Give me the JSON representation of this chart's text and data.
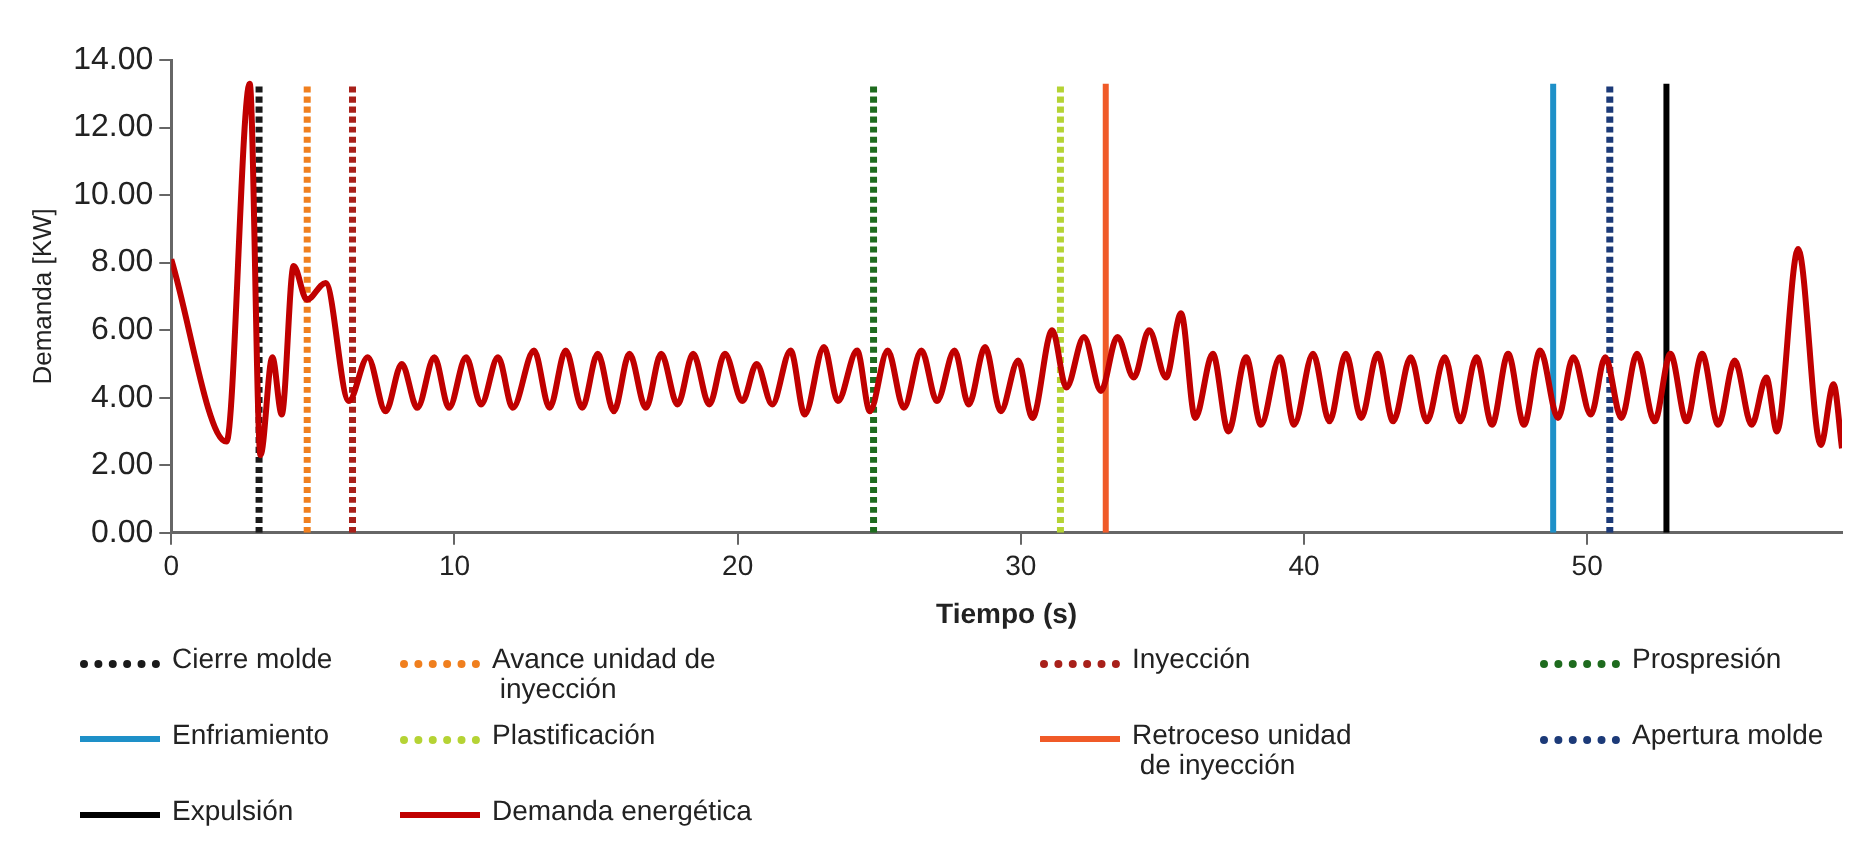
{
  "chart_data": {
    "type": "line",
    "xlabel": "Tiempo (s)",
    "ylabel": "Demanda [KW]",
    "xlim": [
      0,
      59
    ],
    "xticks": [
      0,
      10,
      20,
      30,
      40,
      50
    ],
    "ylim": [
      0,
      14
    ],
    "yticks": [
      {
        "value": 0,
        "label": "0.00"
      },
      {
        "value": 2,
        "label": "2.00"
      },
      {
        "value": 4,
        "label": "4.00"
      },
      {
        "value": 6,
        "label": "6.00"
      },
      {
        "value": 8,
        "label": "8.00"
      },
      {
        "value": 10,
        "label": "10.00"
      },
      {
        "value": 12,
        "label": "12.00"
      },
      {
        "value": 14,
        "label": "14.00"
      }
    ],
    "grid": false,
    "legend": "bottom",
    "series": [
      {
        "name": "Cierre molde",
        "color": "#1a1a1a",
        "type": "line",
        "line_style": "dotted",
        "x": [
          3.1,
          3.1
        ],
        "values": [
          0,
          13.3
        ]
      },
      {
        "name": "Avance unidad de\n inyección",
        "color": "#f07f1e",
        "type": "line",
        "line_style": "dotted",
        "x": [
          4.8,
          4.8
        ],
        "values": [
          0,
          13.3
        ]
      },
      {
        "name": "Inyección",
        "color": "#a8201a",
        "type": "line",
        "line_style": "dotted",
        "x": [
          6.4,
          6.4
        ],
        "values": [
          0,
          13.3
        ]
      },
      {
        "name": "Prospresión",
        "color": "#1e6b1e",
        "type": "line",
        "line_style": "dotted",
        "x": [
          24.8,
          24.8
        ],
        "values": [
          0,
          13.3
        ]
      },
      {
        "name": "Enfriamiento",
        "color": "#1e90c8",
        "type": "line",
        "line_style": "solid",
        "x": [
          48.8,
          48.8
        ],
        "values": [
          0,
          13.3
        ]
      },
      {
        "name": "Plastificación",
        "color": "#b5d334",
        "type": "line",
        "line_style": "dotted",
        "x": [
          31.4,
          31.4
        ],
        "values": [
          0,
          13.3
        ]
      },
      {
        "name": "Retroceso unidad\n de inyección",
        "color": "#f05a28",
        "type": "line",
        "line_style": "solid",
        "x": [
          33.0,
          33.0
        ],
        "values": [
          0,
          13.3
        ]
      },
      {
        "name": "Apertura molde",
        "color": "#1c3a78",
        "type": "line",
        "line_style": "dotted",
        "x": [
          50.8,
          50.8
        ],
        "values": [
          0,
          13.3
        ]
      },
      {
        "name": "Expulsión",
        "color": "#000000",
        "type": "line",
        "line_style": "solid",
        "x": [
          52.8,
          52.8
        ],
        "values": [
          0,
          13.3
        ]
      },
      {
        "name": "Demanda energética",
        "color": "#c00000",
        "type": "line",
        "line_style": "solid",
        "x": [
          0,
          1.95,
          2.77,
          3.15,
          3.57,
          3.9,
          4.32,
          4.79,
          5.45,
          6.27,
          6.94,
          7.57,
          8.14,
          8.69,
          9.29,
          9.81,
          10.41,
          10.94,
          11.54,
          12.06,
          12.81,
          13.36,
          13.93,
          14.51,
          15.06,
          15.63,
          16.18,
          16.76,
          17.3,
          17.88,
          18.43,
          19.0,
          19.55,
          20.17,
          20.67,
          21.22,
          21.87,
          22.37,
          23.05,
          23.54,
          24.22,
          24.67,
          25.3,
          25.87,
          26.49,
          27.04,
          27.66,
          28.16,
          28.74,
          29.29,
          29.91,
          30.41,
          31.11,
          31.61,
          32.23,
          32.83,
          33.41,
          33.99,
          34.53,
          35.13,
          35.66,
          36.16,
          36.78,
          37.33,
          37.96,
          38.48,
          39.15,
          39.65,
          40.32,
          40.9,
          41.48,
          42.02,
          42.6,
          43.15,
          43.77,
          44.34,
          44.97,
          45.52,
          46.09,
          46.64,
          47.21,
          47.77,
          48.34,
          48.97,
          49.51,
          50.13,
          50.64,
          51.21,
          51.76,
          52.38,
          52.94,
          53.51,
          54.06,
          54.63,
          55.21,
          55.81,
          56.33,
          56.7,
          57.45,
          58.25,
          58.7,
          59.0
        ],
        "values": [
          8.1,
          2.7,
          13.3,
          2.3,
          5.2,
          3.5,
          7.9,
          6.9,
          7.4,
          3.9,
          5.2,
          3.6,
          5.0,
          3.7,
          5.2,
          3.7,
          5.2,
          3.8,
          5.2,
          3.7,
          5.4,
          3.7,
          5.4,
          3.7,
          5.3,
          3.6,
          5.3,
          3.7,
          5.3,
          3.8,
          5.3,
          3.8,
          5.3,
          3.9,
          5.0,
          3.8,
          5.4,
          3.5,
          5.5,
          3.9,
          5.4,
          3.6,
          5.4,
          3.7,
          5.4,
          3.9,
          5.4,
          3.8,
          5.5,
          3.6,
          5.1,
          3.4,
          6.0,
          4.3,
          5.8,
          4.2,
          5.8,
          4.6,
          6.0,
          4.6,
          6.5,
          3.4,
          5.3,
          3.0,
          5.2,
          3.2,
          5.2,
          3.2,
          5.3,
          3.3,
          5.3,
          3.4,
          5.3,
          3.3,
          5.2,
          3.3,
          5.2,
          3.3,
          5.2,
          3.2,
          5.3,
          3.2,
          5.4,
          3.4,
          5.2,
          3.5,
          5.2,
          3.4,
          5.3,
          3.3,
          5.3,
          3.3,
          5.3,
          3.2,
          5.1,
          3.2,
          4.6,
          3.0,
          8.4,
          2.6,
          4.4,
          2.5
        ]
      }
    ]
  }
}
